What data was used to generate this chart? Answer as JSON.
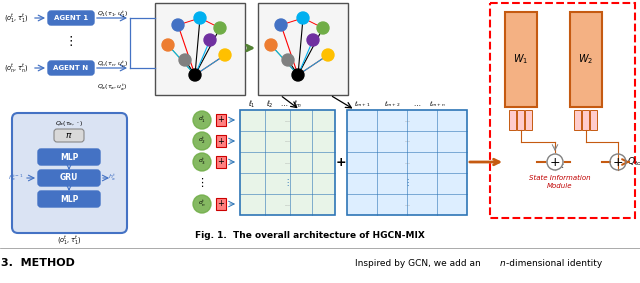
{
  "fig_caption": "Fig. 1.  The overall architecture of HGCN-MIX",
  "section_title": "3.  METHOD",
  "right_text": "Inspired by GCN, we add an ",
  "right_text2": "n",
  "right_text3": "-dimensional identity",
  "bg_color": "#ffffff",
  "blue_dark": "#4472c4",
  "blue_light": "#dae3f3",
  "blue_mid": "#9dc3e6",
  "orange_dark": "#c55a11",
  "orange_med": "#f4b183",
  "pink_rect": "#e06666",
  "teal_color": "#2e75b6",
  "green_node": "#70ad47",
  "gray_bg": "#d9d9d9",
  "state_label": "State Information\nModule",
  "node_colors": [
    "#4472c4",
    "#70ad47",
    "#ffc000",
    "#ed7d31",
    "#7030a0",
    "#00b0f0",
    "#808080",
    "#000000"
  ],
  "mat_left_bg": "#e2f0d9",
  "mat_right_bg": "#deebf7"
}
